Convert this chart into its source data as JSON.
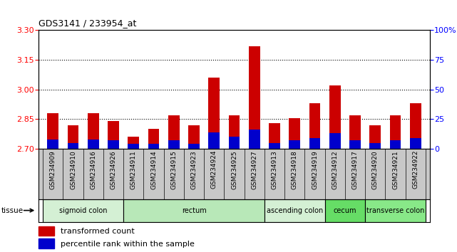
{
  "title": "GDS3141 / 233954_at",
  "samples": [
    "GSM234909",
    "GSM234910",
    "GSM234916",
    "GSM234926",
    "GSM234911",
    "GSM234914",
    "GSM234915",
    "GSM234923",
    "GSM234924",
    "GSM234925",
    "GSM234927",
    "GSM234913",
    "GSM234918",
    "GSM234919",
    "GSM234912",
    "GSM234917",
    "GSM234920",
    "GSM234921",
    "GSM234922"
  ],
  "red_values": [
    2.88,
    2.82,
    2.88,
    2.84,
    2.76,
    2.8,
    2.87,
    2.82,
    3.06,
    2.87,
    3.22,
    2.83,
    2.855,
    2.93,
    3.02,
    2.87,
    2.82,
    2.87,
    2.93
  ],
  "blue_pct": [
    8,
    5,
    8,
    7,
    4,
    4,
    7,
    4,
    14,
    10,
    16,
    5,
    7,
    9,
    13,
    7,
    5,
    7,
    9
  ],
  "y_min": 2.7,
  "y_max": 3.3,
  "y_ticks_left": [
    2.7,
    2.85,
    3.0,
    3.15,
    3.3
  ],
  "y_ticks_right_pct": [
    0,
    25,
    50,
    75,
    100
  ],
  "tissue_groups": [
    {
      "label": "sigmoid colon",
      "start": 0,
      "end": 4,
      "color": "#d4f0d4"
    },
    {
      "label": "rectum",
      "start": 4,
      "end": 11,
      "color": "#b8e8b8"
    },
    {
      "label": "ascending colon",
      "start": 11,
      "end": 14,
      "color": "#d4f0d4"
    },
    {
      "label": "cecum",
      "start": 14,
      "end": 16,
      "color": "#66dd66"
    },
    {
      "label": "transverse colon",
      "start": 16,
      "end": 19,
      "color": "#88e888"
    }
  ],
  "bar_color_red": "#cc0000",
  "bar_color_blue": "#0000cc",
  "plot_bg": "#ffffff",
  "tick_bg": "#c8c8c8",
  "bar_width": 0.55,
  "base_value": 2.7
}
